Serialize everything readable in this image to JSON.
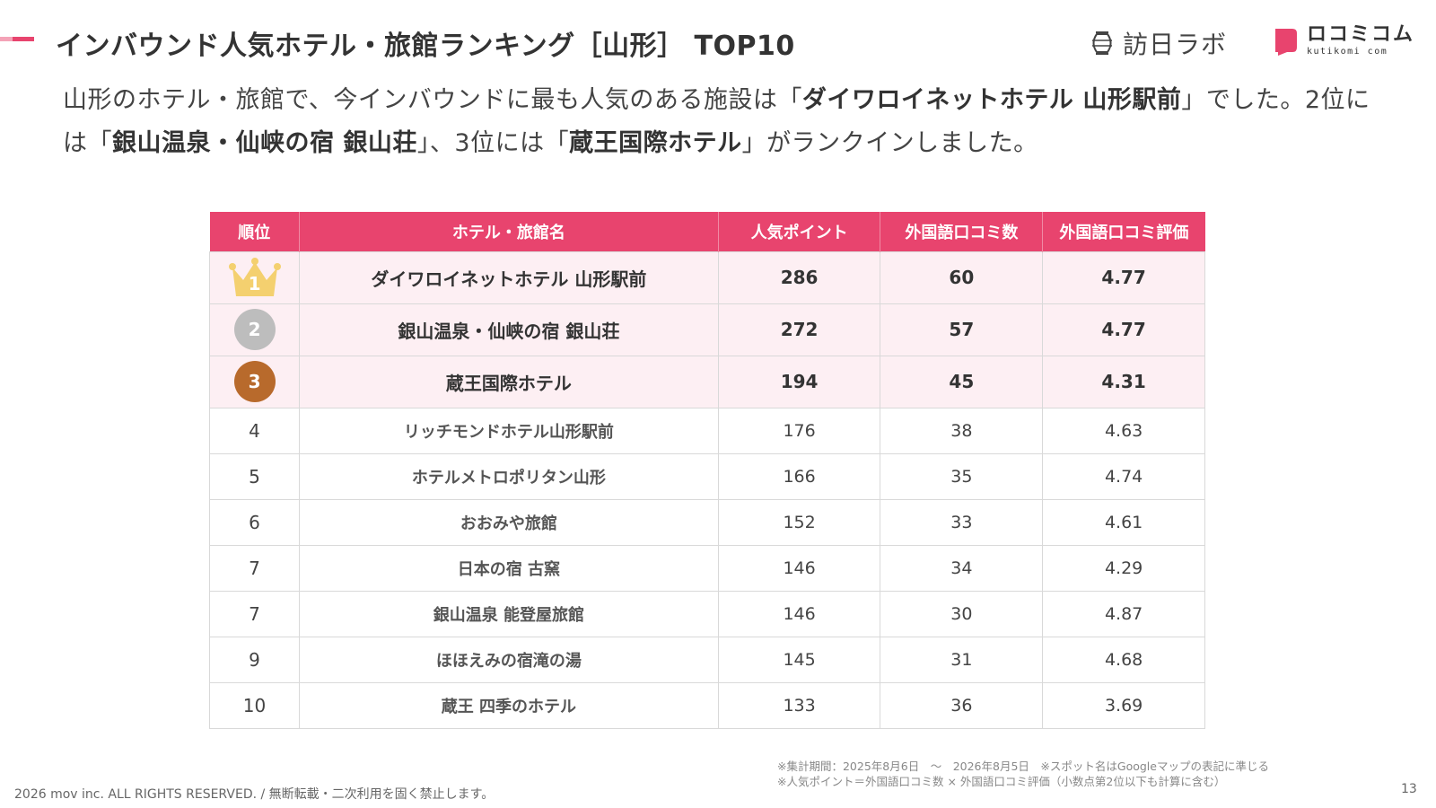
{
  "header": {
    "title": "インバウンド人気ホテル・旅館ランキング［山形］ TOP10",
    "logo1_text": "訪日ラボ",
    "logo2_main": "ロコミコム",
    "logo2_sub": "kutikomi com",
    "accent_color": "#e8446e"
  },
  "summary": {
    "p1": "山形のホテル・旅館で、今インバウンドに最も人気のある施設は「",
    "h1": "ダイワロイネットホテル 山形駅前",
    "p2": "」でした。2位には「",
    "h2": "銀山温泉・仙峡の宿 銀山荘",
    "p3": "」、3位には「",
    "h3": "蔵王国際ホテル",
    "p4": "」がランクインしました。"
  },
  "table": {
    "headers": [
      "順位",
      "ホテル・旅館名",
      "人気ポイント",
      "外国語口コミ数",
      "外国語口コミ評価"
    ],
    "rows": [
      {
        "rank": "1",
        "name": "ダイワロイネットホテル 山形駅前",
        "points": "286",
        "reviews": "60",
        "rating": "4.77",
        "badge": "crown-icon"
      },
      {
        "rank": "2",
        "name": "銀山温泉・仙峡の宿 銀山荘",
        "points": "272",
        "reviews": "57",
        "rating": "4.77",
        "badge": "silver-medal"
      },
      {
        "rank": "3",
        "name": "蔵王国際ホテル",
        "points": "194",
        "reviews": "45",
        "rating": "4.31",
        "badge": "bronze-medal"
      },
      {
        "rank": "4",
        "name": "リッチモンドホテル山形駅前",
        "points": "176",
        "reviews": "38",
        "rating": "4.63"
      },
      {
        "rank": "5",
        "name": "ホテルメトロポリタン山形",
        "points": "166",
        "reviews": "35",
        "rating": "4.74"
      },
      {
        "rank": "6",
        "name": "おおみや旅館",
        "points": "152",
        "reviews": "33",
        "rating": "4.61"
      },
      {
        "rank": "7",
        "name": "日本の宿 古窯",
        "points": "146",
        "reviews": "34",
        "rating": "4.29"
      },
      {
        "rank": "7",
        "name": "銀山温泉 能登屋旅館",
        "points": "146",
        "reviews": "30",
        "rating": "4.87"
      },
      {
        "rank": "9",
        "name": "ほほえみの宿滝の湯",
        "points": "145",
        "reviews": "31",
        "rating": "4.68"
      },
      {
        "rank": "10",
        "name": "蔵王 四季のホテル",
        "points": "133",
        "reviews": "36",
        "rating": "3.69"
      }
    ]
  },
  "footer": {
    "note1": "※集計期間：2025年8月6日　〜　2026年8月5日　※スポット名はGoogleマップの表記に準じる",
    "note2": "※人気ポイント＝外国語口コミ数 × 外国語口コミ評価（小数点第2位以下も計算に含む）",
    "copyright": "2026 mov inc. ALL RIGHTS RESERVED. / 無断転載・二次利用を固く禁止します。",
    "page_number": "13"
  }
}
